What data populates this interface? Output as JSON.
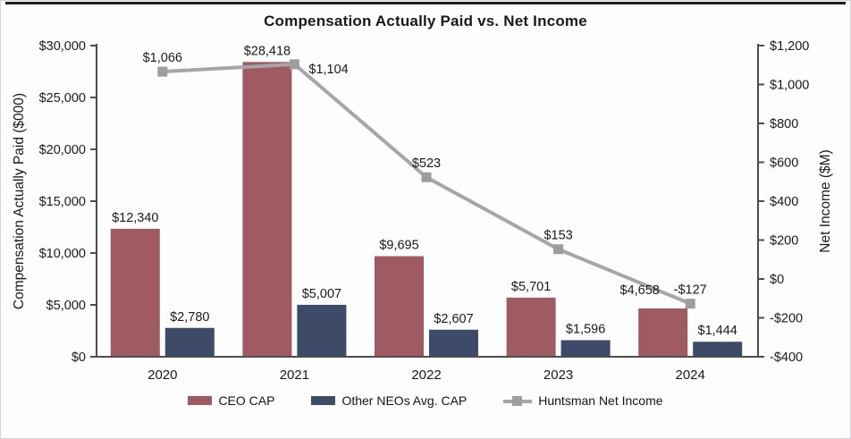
{
  "header": {
    "title": "Compensation Actually Paid vs. Net Income"
  },
  "chart_data": {
    "type": "bar+line",
    "title": "Compensation Actually Paid vs. Net Income",
    "categories": [
      "2020",
      "2021",
      "2022",
      "2023",
      "2024"
    ],
    "bar_series": [
      {
        "name": "CEO CAP",
        "axis": "left",
        "color": "#a05a62",
        "values": [
          12340,
          28418,
          9695,
          5701,
          4658
        ],
        "labels": [
          "$12,340",
          "$28,418",
          "$9,695",
          "$5,701",
          "$4,658"
        ]
      },
      {
        "name": "Other NEOs Avg. CAP",
        "axis": "left",
        "color": "#3d4a68",
        "values": [
          2780,
          5007,
          2607,
          1596,
          1444
        ],
        "labels": [
          "$2,780",
          "$5,007",
          "$2,607",
          "$1,596",
          "$1,444"
        ]
      }
    ],
    "line_series": {
      "name": "Huntsman Net Income",
      "axis": "right",
      "color": "#a6a6a6",
      "marker_color": "#9d9d9d",
      "values": [
        1066,
        1104,
        523,
        153,
        -127
      ],
      "labels": [
        "$1,066",
        "$1,104",
        "$523",
        "$153",
        "-$127"
      ]
    },
    "left_axis": {
      "title": "Compensation Actually Paid ($000)",
      "min": 0,
      "max": 30000,
      "tick_step": 5000,
      "tick_labels": [
        "$0",
        "$5,000",
        "$10,000",
        "$15,000",
        "$20,000",
        "$25,000",
        "$30,000"
      ]
    },
    "right_axis": {
      "title": "Net Income ($M)",
      "min": -400,
      "max": 1200,
      "tick_step": 200,
      "tick_labels": [
        "-$400",
        "-$200",
        "$0",
        "$200",
        "$400",
        "$600",
        "$800",
        "$1,000",
        "$1,200"
      ]
    },
    "legend": [
      {
        "label": "CEO CAP",
        "swatch": "bar",
        "color": "#a05a62"
      },
      {
        "label": "Other NEOs Avg. CAP",
        "swatch": "bar",
        "color": "#3d4a68"
      },
      {
        "label": "Huntsman Net Income",
        "swatch": "line",
        "color": "#a6a6a6"
      }
    ],
    "layout_hints": {
      "grid": false,
      "legend_position": "bottom",
      "line_label_placements": [
        "above",
        "right",
        "above",
        "above",
        "above"
      ],
      "bar_label_offsets": {
        "CEO CAP": [
          [
            0,
            0
          ],
          [
            0,
            0
          ],
          [
            0,
            0
          ],
          [
            0,
            0
          ],
          [
            -26,
            -8
          ]
        ]
      }
    },
    "colors": {
      "axis": "#4d4d4d",
      "text": "#1a1a1a",
      "background": "#fdfdfd",
      "top_rule": "#1d1d1d"
    }
  }
}
